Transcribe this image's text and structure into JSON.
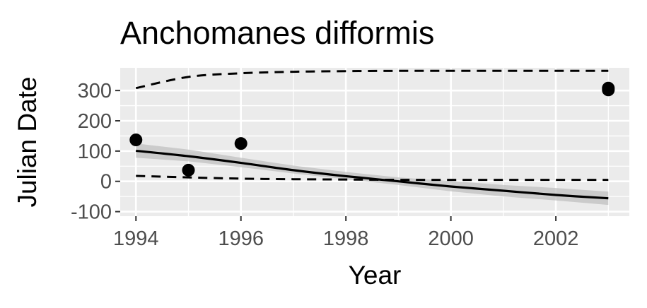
{
  "chart_data": {
    "type": "scatter",
    "title": "Anchomanes difformis",
    "xlabel": "Year",
    "ylabel": "Julian Date",
    "xlim": [
      1993.7,
      2003.4
    ],
    "ylim": [
      -115,
      375
    ],
    "x_ticks": [
      1994,
      1996,
      1998,
      2000,
      2002
    ],
    "x_tick_labels": [
      "1994",
      "1996",
      "1998",
      "2000",
      "2002"
    ],
    "y_ticks": [
      -100,
      0,
      100,
      200,
      300
    ],
    "y_tick_labels": [
      "-100",
      "0",
      "100",
      "200",
      "300"
    ],
    "grid": true,
    "points": [
      {
        "x": 1994,
        "y": 137
      },
      {
        "x": 1995,
        "y": 37
      },
      {
        "x": 1996,
        "y": 125
      },
      {
        "x": 2003,
        "y": 302
      },
      {
        "x": 2003,
        "y": 308
      }
    ],
    "trend_line": {
      "x": [
        1994,
        1995,
        1996,
        1997,
        1998,
        1999,
        2000,
        2001,
        2002,
        2003
      ],
      "y": [
        101,
        83,
        61,
        37,
        17,
        0,
        -17,
        -31,
        -45,
        -56
      ]
    },
    "ribbon": {
      "x": [
        1994,
        1995,
        1996,
        1997,
        1998,
        1999,
        2000,
        2001,
        2002,
        2003
      ],
      "lower": [
        78,
        66,
        47,
        26,
        7,
        -12,
        -33,
        -50,
        -63,
        -78
      ],
      "upper": [
        125,
        105,
        78,
        52,
        31,
        13,
        1,
        -12,
        -22,
        -34
      ]
    },
    "upper_bound": {
      "x": [
        1994,
        1995,
        1996,
        1997,
        1998,
        1999,
        2000,
        2001,
        2002,
        2003
      ],
      "y": [
        308,
        345,
        357,
        362,
        364,
        365,
        365,
        365,
        365,
        365
      ]
    },
    "lower_bound": {
      "x": [
        1994,
        1995,
        1996,
        1997,
        1998,
        1999,
        2000,
        2001,
        2002,
        2003
      ],
      "y": [
        18,
        13,
        9,
        7,
        6,
        5,
        5,
        5,
        5,
        5
      ]
    },
    "colors": {
      "panel": "#ebebeb",
      "grid": "#ffffff",
      "point": "#000000",
      "line": "#000000",
      "ribbon": "#bdbdbd",
      "tick_text": "#4d4d4d"
    }
  }
}
